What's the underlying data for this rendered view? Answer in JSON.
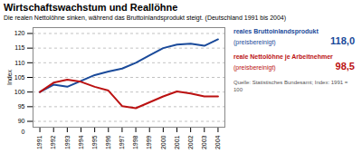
{
  "chart_data": {
    "type": "line",
    "title": "Wirtschaftswachstum und Reallöhne",
    "subtitle": "Die realen Nettolöhne sinken, während das Bruttoinlandsprodukt steigt. (Deutschland 1991 bis 2004)",
    "source": "Quelle: Statistisches Bundesamt; Index: 1991 = 100",
    "ylabel": "Index",
    "x": [
      1991,
      1992,
      1993,
      1994,
      1995,
      1996,
      1997,
      1998,
      1999,
      2000,
      2001,
      2002,
      2003,
      2004
    ],
    "series": [
      {
        "name": "reales Bruttoinlandsprodukt",
        "annotation": "(preisbereinigt)",
        "end_label": "118,0",
        "color": "#1a4a9a",
        "values": [
          100.0,
          102.5,
          101.8,
          103.8,
          105.8,
          107.0,
          108.0,
          110.0,
          112.5,
          115.0,
          116.2,
          116.5,
          115.8,
          118.0
        ]
      },
      {
        "name": "reale Nettolöhne je Arbeitnehmer",
        "annotation": "(preisbereinigt)",
        "end_label": "98,5",
        "color": "#bb1111",
        "values": [
          100.0,
          103.2,
          104.2,
          103.5,
          101.8,
          100.5,
          95.2,
          94.5,
          96.5,
          98.5,
          100.2,
          99.5,
          98.5,
          98.5
        ]
      }
    ],
    "xlim": [
      1990.5,
      2004.5
    ],
    "xticks": [
      1991,
      1992,
      1993,
      1994,
      1995,
      1996,
      1997,
      1998,
      1999,
      2000,
      2001,
      2002,
      2003,
      2004
    ],
    "ylim": [
      88,
      122
    ],
    "yticks": [
      90,
      95,
      100,
      105,
      110,
      115,
      120
    ],
    "grid": true,
    "annotations": [
      "0"
    ]
  }
}
